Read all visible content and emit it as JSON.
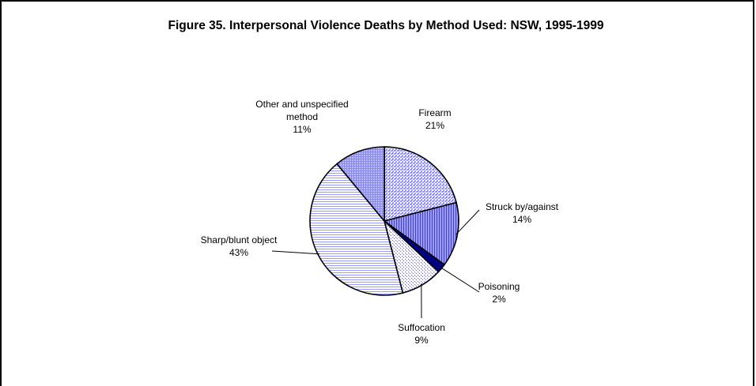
{
  "chart_data": {
    "type": "pie",
    "title": "Figure 35. Interpersonal Violence  Deaths by Method Used:  NSW, 1995-1999",
    "slices": [
      {
        "name": "Firearm",
        "value": 21,
        "label_lines": [
          "Firearm",
          "21%"
        ],
        "pattern": "cross",
        "color": "#9999ff"
      },
      {
        "name": "Struck by/against",
        "value": 14,
        "label_lines": [
          "Struck by/against",
          "14%"
        ],
        "pattern": "vlines",
        "color": "#9999ff"
      },
      {
        "name": "Poisoning",
        "value": 2,
        "label_lines": [
          "Poisoning",
          "2%"
        ],
        "pattern": "solid",
        "color": "#000080"
      },
      {
        "name": "Suffocation",
        "value": 9,
        "label_lines": [
          "Suffocation",
          "9%"
        ],
        "pattern": "dots",
        "color": "#9999ff"
      },
      {
        "name": "Sharp/blunt object",
        "value": 43,
        "label_lines": [
          "Sharp/blunt object",
          "43%"
        ],
        "pattern": "hlines",
        "color": "#9999ff"
      },
      {
        "name": "Other and unspecified method",
        "value": 11,
        "label_lines": [
          "Other and unspecified",
          "method",
          "11%"
        ],
        "pattern": "grid",
        "color": "#9999ff"
      }
    ],
    "legend": "none",
    "data_labels": "outside with leader lines for small slices"
  }
}
